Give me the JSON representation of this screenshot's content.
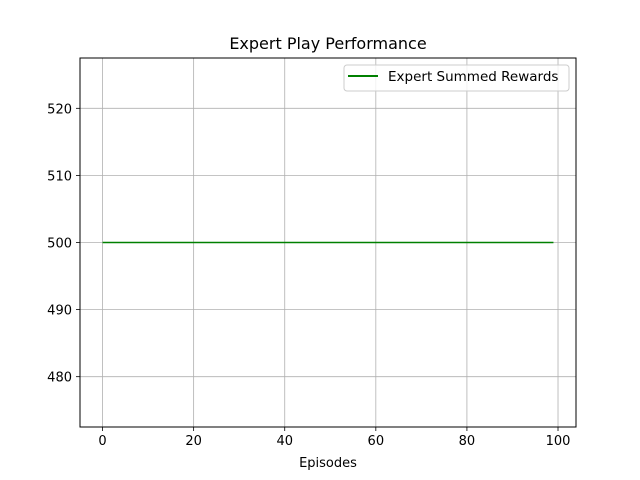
{
  "chart_data": {
    "type": "line",
    "title": "Expert Play Performance",
    "xlabel": "Episodes",
    "ylabel": "",
    "xlim": [
      -4.95,
      103.95
    ],
    "ylim": [
      472.5,
      527.5
    ],
    "xticks": [
      0,
      20,
      40,
      60,
      80,
      100
    ],
    "yticks": [
      480,
      490,
      500,
      510,
      520
    ],
    "grid": true,
    "legend_position": "upper right",
    "series": [
      {
        "name": "Expert Summed Rewards",
        "color": "#008000",
        "x_start": 0,
        "x_end": 99,
        "x_step": 1,
        "value": 500
      }
    ]
  }
}
